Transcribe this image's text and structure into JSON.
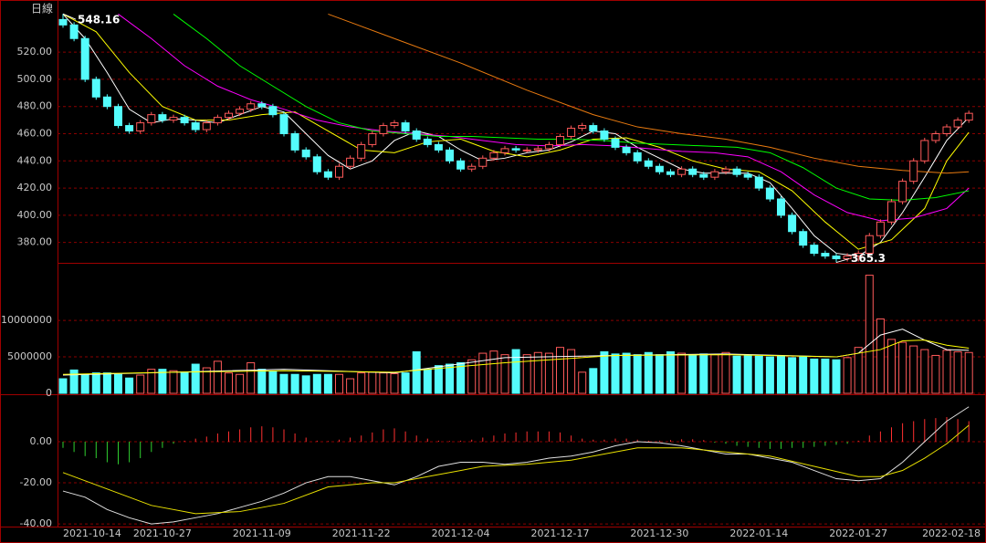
{
  "chart_data": [
    {
      "type": "candlestick",
      "title": "日線",
      "grid": true,
      "up_color": "#ff5a5a",
      "down_color": "#54fcfc",
      "categories": [
        "2021-10-14",
        null,
        null,
        null,
        null,
        null,
        null,
        null,
        null,
        "2021-10-27",
        null,
        null,
        null,
        null,
        null,
        null,
        null,
        null,
        "2021-11-09",
        null,
        null,
        null,
        null,
        null,
        null,
        null,
        null,
        "2021-11-22",
        null,
        null,
        null,
        null,
        null,
        null,
        null,
        null,
        "2021-12-04",
        null,
        null,
        null,
        null,
        null,
        null,
        null,
        null,
        "2021-12-17",
        null,
        null,
        null,
        null,
        null,
        null,
        null,
        null,
        "2021-12-30",
        null,
        null,
        null,
        null,
        null,
        null,
        null,
        null,
        "2022-01-14",
        null,
        null,
        null,
        null,
        null,
        null,
        null,
        null,
        "2022-01-27",
        null,
        null,
        null,
        null,
        null,
        null,
        null,
        null,
        "2022-02-18",
        null
      ],
      "open": [
        544,
        540,
        530,
        500,
        487,
        480,
        466,
        462,
        468,
        474,
        470,
        472,
        468,
        463,
        468,
        472,
        475,
        478,
        482,
        480,
        474,
        460,
        448,
        443,
        432,
        428,
        436,
        442,
        452,
        460,
        466,
        468,
        462,
        456,
        452,
        448,
        440,
        434,
        436,
        442,
        446,
        449,
        448,
        448,
        449,
        452,
        458,
        464,
        466,
        462,
        456,
        450,
        446,
        440,
        436,
        432,
        430,
        434,
        430,
        428,
        432,
        434,
        430,
        428,
        420,
        412,
        400,
        388,
        378,
        372,
        370,
        368,
        370,
        372,
        385,
        395,
        410,
        425,
        440,
        455,
        460,
        465,
        470
      ],
      "high": [
        548.16,
        542,
        532,
        502,
        489,
        482,
        468,
        470,
        476,
        476,
        474,
        474,
        470,
        470,
        474,
        477,
        480,
        484,
        484,
        482,
        476,
        462,
        450,
        445,
        434,
        438,
        444,
        454,
        462,
        468,
        470,
        470,
        464,
        458,
        454,
        450,
        442,
        438,
        444,
        448,
        451,
        451,
        450,
        451,
        454,
        460,
        466,
        468,
        468,
        464,
        458,
        452,
        448,
        442,
        438,
        434,
        436,
        436,
        432,
        434,
        436,
        436,
        432,
        430,
        422,
        414,
        402,
        390,
        380,
        374,
        372,
        372,
        374,
        387,
        397,
        412,
        427,
        442,
        457,
        462,
        467,
        472,
        477
      ],
      "low": [
        538,
        528,
        498,
        485,
        478,
        464,
        460,
        460,
        466,
        468,
        468,
        466,
        461,
        461,
        466,
        470,
        473,
        476,
        478,
        472,
        458,
        446,
        441,
        430,
        426,
        426,
        434,
        440,
        450,
        458,
        464,
        460,
        454,
        450,
        446,
        438,
        432,
        432,
        434,
        440,
        444,
        446,
        446,
        446,
        447,
        450,
        456,
        462,
        460,
        454,
        448,
        444,
        438,
        434,
        430,
        428,
        428,
        428,
        426,
        426,
        430,
        428,
        426,
        418,
        410,
        398,
        386,
        376,
        370,
        368,
        365.3,
        366,
        366,
        370,
        383,
        393,
        408,
        423,
        438,
        453,
        458,
        463,
        468
      ],
      "close": [
        540,
        530,
        500,
        487,
        480,
        466,
        462,
        468,
        474,
        470,
        472,
        468,
        463,
        468,
        472,
        475,
        478,
        482,
        480,
        474,
        460,
        448,
        443,
        432,
        428,
        436,
        442,
        452,
        460,
        466,
        468,
        462,
        456,
        452,
        448,
        440,
        434,
        436,
        442,
        446,
        449,
        448,
        448,
        449,
        452,
        458,
        464,
        466,
        462,
        456,
        450,
        446,
        440,
        436,
        432,
        430,
        434,
        430,
        428,
        432,
        434,
        430,
        428,
        420,
        412,
        400,
        388,
        378,
        372,
        370,
        368,
        370,
        372,
        385,
        395,
        410,
        425,
        440,
        455,
        460,
        465,
        470,
        475
      ],
      "series": [
        {
          "color": "#ffffff",
          "x": [
            0,
            2,
            4,
            6,
            8,
            10,
            12,
            14,
            16,
            18,
            20,
            22,
            24,
            26,
            28,
            30,
            32,
            34,
            36,
            38,
            40,
            42,
            44,
            46,
            48,
            50,
            52,
            54,
            56,
            58,
            60,
            62,
            64,
            66,
            68,
            70,
            72,
            74,
            76,
            78,
            80,
            82
          ],
          "values": [
            548,
            530,
            505,
            478,
            468,
            471,
            470,
            468,
            474,
            480,
            476,
            460,
            444,
            434,
            440,
            455,
            462,
            458,
            448,
            440,
            442,
            446,
            448,
            454,
            462,
            460,
            450,
            442,
            434,
            431,
            431,
            431,
            424,
            405,
            385,
            372,
            370,
            380,
            402,
            428,
            455,
            472
          ]
        },
        {
          "color": "#ffff00",
          "x": [
            0,
            3,
            6,
            9,
            12,
            15,
            18,
            21,
            24,
            27,
            30,
            33,
            36,
            39,
            42,
            45,
            48,
            51,
            54,
            57,
            60,
            63,
            66,
            69,
            72,
            75,
            78,
            80,
            82
          ],
          "values": [
            548,
            535,
            505,
            480,
            470,
            470,
            474,
            476,
            462,
            448,
            446,
            454,
            456,
            447,
            443,
            448,
            456,
            457,
            450,
            440,
            434,
            432,
            418,
            395,
            375,
            382,
            405,
            440,
            461
          ]
        },
        {
          "color": "#ff00ff",
          "x": [
            5,
            8,
            11,
            14,
            17,
            20,
            23,
            26,
            29,
            32,
            35,
            38,
            41,
            44,
            47,
            50,
            53,
            56,
            59,
            62,
            65,
            68,
            71,
            74,
            77,
            80,
            82
          ],
          "values": [
            548,
            530,
            510,
            495,
            485,
            478,
            470,
            465,
            462,
            460,
            458,
            455,
            452,
            451,
            452,
            451,
            449,
            447,
            446,
            443,
            432,
            415,
            402,
            396,
            398,
            405,
            420
          ]
        },
        {
          "color": "#00ff00",
          "x": [
            10,
            13,
            16,
            19,
            22,
            25,
            28,
            31,
            34,
            37,
            40,
            43,
            46,
            49,
            52,
            55,
            58,
            61,
            64,
            67,
            70,
            73,
            76,
            79,
            82
          ],
          "values": [
            548,
            530,
            510,
            495,
            480,
            468,
            462,
            460,
            458,
            458,
            457,
            456,
            456,
            455,
            453,
            452,
            451,
            450,
            446,
            435,
            420,
            412,
            411,
            413,
            418
          ]
        },
        {
          "color": "#e87a10",
          "x": [
            24,
            30,
            36,
            42,
            48,
            52,
            56,
            60,
            64,
            68,
            72,
            76,
            80,
            82
          ],
          "values": [
            548,
            530,
            512,
            492,
            474,
            465,
            460,
            456,
            450,
            442,
            436,
            433,
            431,
            432
          ]
        }
      ],
      "ylim": [
        365,
        555
      ],
      "yticks": [
        {
          "value": 380,
          "label": "380.00"
        },
        {
          "value": 400,
          "label": "400.00"
        },
        {
          "value": 420,
          "label": "420.00"
        },
        {
          "value": 440,
          "label": "440.00"
        },
        {
          "value": 460,
          "label": "460.00"
        },
        {
          "value": 480,
          "label": "480.00"
        },
        {
          "value": 500,
          "label": "500.00"
        },
        {
          "value": 520,
          "label": "520.00"
        }
      ]
    },
    {
      "type": "volume",
      "grid": true,
      "values": [
        2000000,
        3200000,
        2500000,
        2800000,
        2800000,
        2600000,
        2100000,
        2500000,
        3300000,
        3300000,
        3100000,
        2900000,
        4000000,
        3500000,
        4400000,
        2800000,
        2600000,
        4200000,
        3300000,
        3000000,
        2600000,
        2600000,
        2400000,
        2600000,
        2600000,
        2600000,
        2000000,
        2800000,
        2900000,
        2800000,
        2700000,
        2800000,
        5700000,
        3300000,
        3800000,
        4000000,
        4200000,
        4600000,
        5500000,
        5800000,
        5300000,
        6000000,
        5300000,
        5600000,
        5500000,
        6300000,
        6000000,
        2900000,
        3400000,
        5700000,
        5400000,
        5500000,
        5300000,
        5600000,
        5300000,
        5700000,
        5500000,
        5200000,
        5400000,
        5300000,
        5600000,
        5100000,
        5200000,
        5100000,
        5000000,
        5100000,
        4900000,
        5000000,
        4700000,
        4700000,
        4600000,
        4900000,
        6300000,
        16200000,
        10200000,
        7400000,
        7000000,
        6500000,
        6000000,
        5200000,
        5900000,
        5700000,
        5600000
      ],
      "series": [
        {
          "color": "#ffffff",
          "x": [
            0,
            10,
            20,
            30,
            40,
            50,
            60,
            70,
            72,
            74,
            76,
            78,
            80,
            82
          ],
          "values": [
            2500000,
            2900000,
            3300000,
            2800000,
            4900000,
            5200000,
            5400000,
            5000000,
            5500000,
            8000000,
            8800000,
            7300000,
            6000000,
            5900000
          ]
        },
        {
          "color": "#ffff00",
          "x": [
            0,
            10,
            20,
            30,
            40,
            50,
            60,
            70,
            74,
            76,
            78,
            80,
            82
          ],
          "values": [
            2600000,
            2900000,
            3100000,
            2900000,
            4200000,
            5200000,
            5300000,
            5000000,
            6000000,
            7200000,
            7300000,
            6600000,
            6200000
          ]
        }
      ],
      "ylim": [
        0,
        17900000
      ],
      "yticks": [
        0,
        5000000,
        10000000
      ]
    },
    {
      "type": "macd",
      "grid": true,
      "up_color": "#ff3030",
      "down_color": "#30d030",
      "values": [
        -3,
        -5,
        -7,
        -8,
        -10,
        -11,
        -10,
        -8,
        -5,
        -3,
        -1,
        0.5,
        1.5,
        2.5,
        4,
        5,
        6,
        7,
        7.5,
        7,
        6,
        4,
        2,
        0.5,
        0.3,
        1,
        2,
        3,
        4.5,
        6,
        6.5,
        5,
        3,
        1.5,
        0.5,
        0.3,
        0.5,
        1,
        2,
        3,
        4,
        4.5,
        5,
        5,
        5,
        4.5,
        3,
        1.5,
        1,
        1,
        1.5,
        1.5,
        1,
        0.5,
        0.5,
        0.8,
        1.2,
        1.2,
        0.8,
        -0.5,
        -1,
        -2,
        -2.5,
        -3,
        -3.5,
        -3.5,
        -3,
        -3,
        -2.5,
        -2,
        -1.5,
        -1,
        0.5,
        3,
        5,
        7,
        9,
        10,
        11,
        11.5,
        12,
        11,
        10
      ],
      "series": [
        {
          "color": "#e0e0e0",
          "x": [
            0,
            2,
            4,
            6,
            8,
            10,
            12,
            14,
            16,
            18,
            20,
            22,
            24,
            26,
            28,
            30,
            32,
            34,
            36,
            38,
            40,
            42,
            44,
            46,
            48,
            50,
            52,
            54,
            56,
            58,
            60,
            62,
            64,
            66,
            68,
            70,
            72,
            74,
            76,
            78,
            80,
            82
          ],
          "values": [
            -24,
            -27,
            -33,
            -37,
            -40,
            -39,
            -37,
            -35,
            -32,
            -29,
            -25,
            -20,
            -17,
            -17,
            -19,
            -21,
            -17,
            -12,
            -10,
            -10,
            -11,
            -10,
            -8,
            -7,
            -5,
            -2,
            0,
            -0.5,
            -2,
            -4,
            -6,
            -6,
            -8,
            -10,
            -14,
            -18,
            -19,
            -18,
            -10,
            0,
            10,
            17
          ]
        },
        {
          "color": "#e8e000",
          "x": [
            0,
            4,
            8,
            12,
            16,
            20,
            24,
            28,
            30,
            34,
            38,
            42,
            46,
            50,
            52,
            56,
            60,
            64,
            68,
            72,
            74,
            76,
            78,
            80,
            82
          ],
          "values": [
            -15,
            -23,
            -31,
            -35,
            -34,
            -30,
            -22,
            -20,
            -20,
            -16,
            -12,
            -11,
            -9,
            -5,
            -3,
            -3,
            -5,
            -7,
            -12,
            -17,
            -17,
            -14,
            -8,
            -1,
            8
          ]
        }
      ],
      "ylim": [
        -41.3,
        23.1
      ],
      "yticks": [
        {
          "value": 0,
          "label": "0.00"
        },
        {
          "value": -20,
          "label": "-20.00"
        },
        {
          "value": -40,
          "label": "-40.00"
        }
      ]
    }
  ]
}
